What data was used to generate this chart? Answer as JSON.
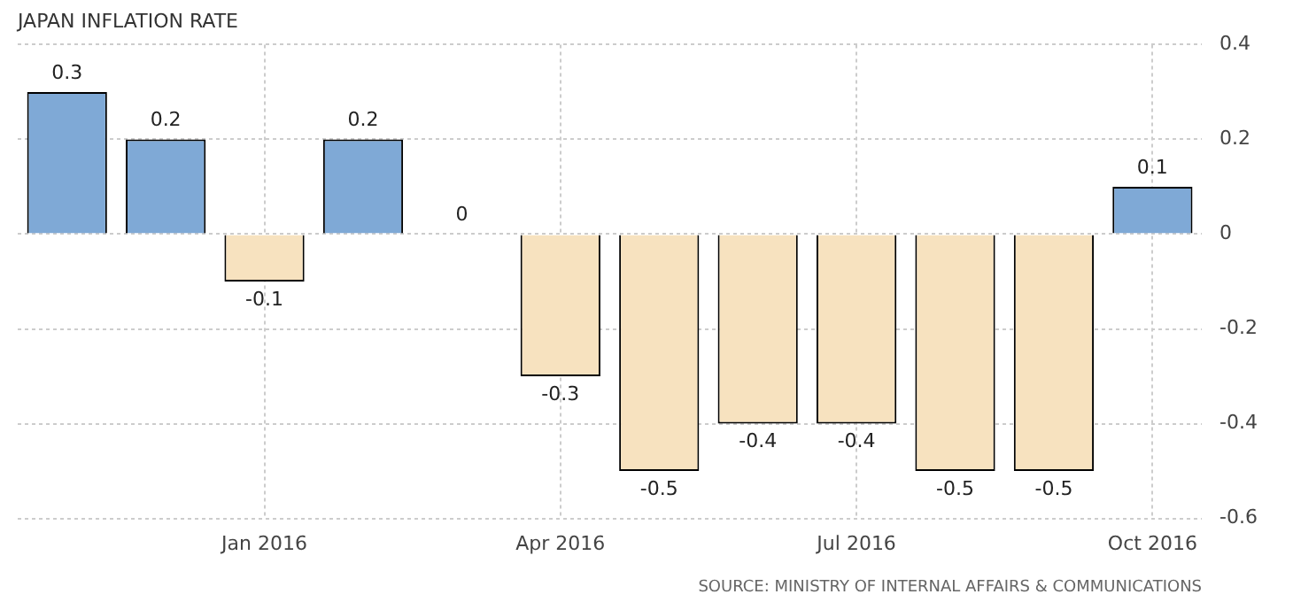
{
  "chart_data": {
    "type": "bar",
    "title": "JAPAN INFLATION RATE",
    "categories": [
      null,
      null,
      "Jan 2016",
      null,
      null,
      "Apr 2016",
      null,
      null,
      "Jul 2016",
      null,
      null,
      "Oct 2016"
    ],
    "values": [
      0.3,
      0.2,
      -0.1,
      0.2,
      0,
      -0.3,
      -0.5,
      -0.4,
      -0.4,
      -0.5,
      -0.5,
      0.1
    ],
    "colors": [
      "#7fa9d6",
      "#7fa9d6",
      "#f7e2bf",
      "#7fa9d6",
      "#7fa9d6",
      "#f7e2bf",
      "#f7e2bf",
      "#f7e2bf",
      "#f7e2bf",
      "#f7e2bf",
      "#f7e2bf",
      "#7fa9d6"
    ],
    "ylim": [
      -0.6,
      0.4
    ],
    "yticks": [
      -0.6,
      -0.4,
      -0.2,
      0,
      0.2,
      0.4
    ],
    "grid": true,
    "legend": false,
    "data_labels": true,
    "annotations": [
      "SOURCE: MINISTRY OF INTERNAL AFFAIRS & COMMUNICATIONS"
    ]
  }
}
